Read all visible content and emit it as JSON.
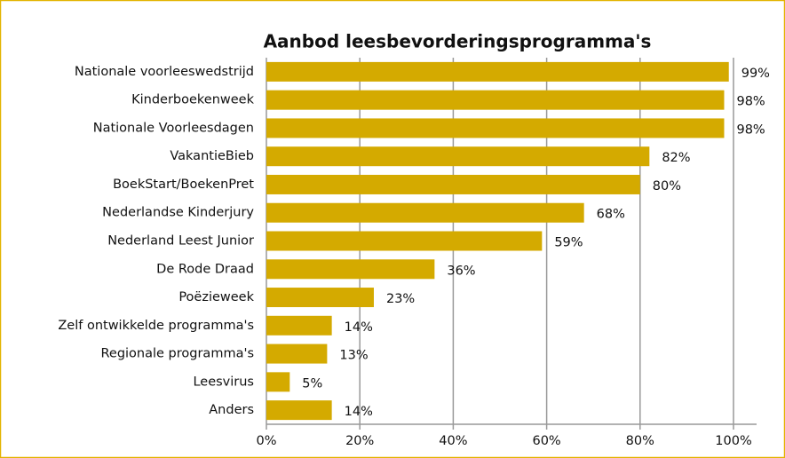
{
  "chart_data": {
    "type": "bar",
    "orientation": "horizontal",
    "title": "Aanbod leesbevorderingsprogramma's",
    "categories": [
      "Nationale voorleeswedstrijd",
      "Kinderboekenweek",
      "Nationale Voorleesdagen",
      "VakantieBieb",
      "BoekStart/BoekenPret",
      "Nederlandse Kinderjury",
      "Nederland Leest Junior",
      "De Rode Draad",
      "Poëzieweek",
      "Zelf ontwikkelde programma's",
      "Regionale programma's",
      "Leesvirus",
      "Anders"
    ],
    "values": [
      99,
      98,
      98,
      82,
      80,
      68,
      59,
      36,
      23,
      14,
      13,
      5,
      14
    ],
    "value_labels": [
      "99%",
      "98%",
      "98%",
      "82%",
      "80%",
      "68%",
      "59%",
      "36%",
      "23%",
      "14%",
      "13%",
      "5%",
      "14%"
    ],
    "color": "#d4aa00",
    "xlim": [
      0,
      100
    ],
    "xticks": [
      {
        "value": 0,
        "label": "0%"
      },
      {
        "value": 20,
        "label": "20%"
      },
      {
        "value": 40,
        "label": "40%"
      },
      {
        "value": 60,
        "label": "60%"
      },
      {
        "value": 80,
        "label": "80%"
      },
      {
        "value": 100,
        "label": "100%"
      }
    ],
    "grid": true
  }
}
